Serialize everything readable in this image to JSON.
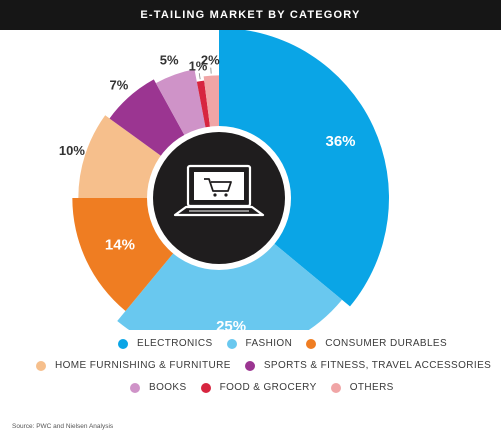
{
  "chart_data": {
    "type": "pie",
    "title": "E-TAILING MARKET BY CATEGORY",
    "categories": [
      "ELECTRONICS",
      "FASHION",
      "CONSUMER DURABLES",
      "HOME FURNISHING & FURNITURE",
      "SPORTS & FITNESS, TRAVEL ACCESSORIES",
      "BOOKS",
      "FOOD & GROCERY",
      "OTHERS"
    ],
    "values": [
      36,
      25,
      14,
      10,
      7,
      5,
      1,
      2
    ],
    "labels": [
      "36%",
      "25%",
      "14%",
      "10%",
      "7%",
      "5%",
      "1%",
      "2%"
    ],
    "colors": [
      "#0aa5e6",
      "#69c8ef",
      "#ef7d22",
      "#f6bf8c",
      "#9b3591",
      "#cf93c8",
      "#d7253f",
      "#f0a5a6"
    ],
    "legend_placement": "bottom",
    "center_icon": "laptop-shopping-cart-icon"
  },
  "source": "Source: PWC and Nielsen Analysis"
}
